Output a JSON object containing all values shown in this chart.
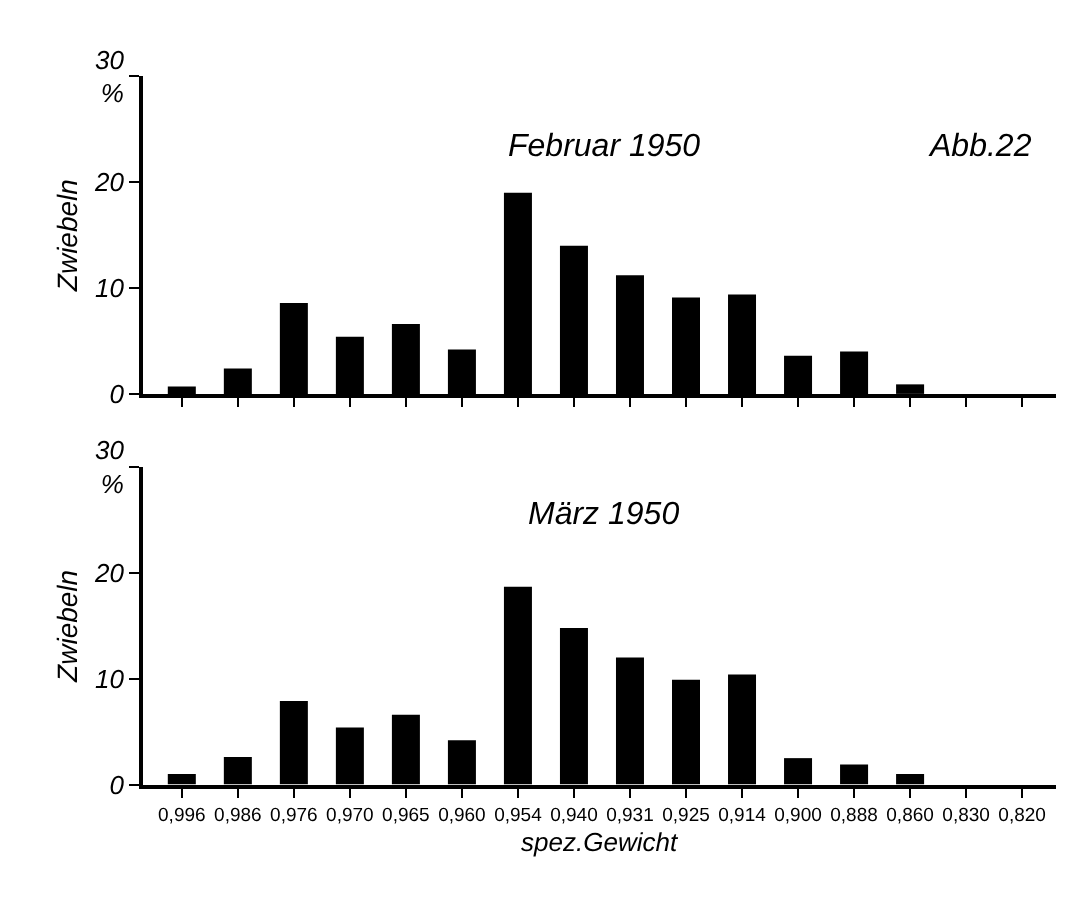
{
  "chart_data": [
    {
      "type": "bar",
      "title": "Februar 1950",
      "ylabel": "Zwiebeln",
      "annotations": [
        "Abb.22"
      ],
      "categories": [
        "0,996",
        "0,986",
        "0,976",
        "0,970",
        "0,965",
        "0,960",
        "0,954",
        "0,940",
        "0,931",
        "0,925",
        "0,914",
        "0,900",
        "0,888",
        "0,860",
        "0,830",
        "0,820"
      ],
      "values": [
        0.7,
        2.4,
        8.6,
        5.4,
        6.6,
        4.2,
        19.0,
        14.0,
        11.2,
        9.1,
        9.4,
        3.6,
        4.0,
        0.9,
        null,
        null
      ],
      "color": "#000000",
      "ylim": [
        0,
        30
      ],
      "yticks": [
        0,
        10,
        20,
        {
          "value": 30,
          "label": "30\n%"
        }
      ],
      "tick_labels": "y"
    },
    {
      "type": "bar",
      "title": "März 1950",
      "xlabel": "spez.Gewicht",
      "ylabel": "Zwiebeln",
      "categories": [
        "0,996",
        "0,986",
        "0,976",
        "0,970",
        "0,965",
        "0,960",
        "0,954",
        "0,940",
        "0,931",
        "0,925",
        "0,914",
        "0,900",
        "0,888",
        "0,860",
        "0,830",
        "0,820"
      ],
      "values": [
        1.0,
        2.6,
        7.9,
        5.4,
        6.6,
        4.2,
        18.7,
        14.8,
        12.0,
        9.9,
        10.4,
        2.5,
        1.9,
        1.0,
        null,
        null
      ],
      "color": "#000000",
      "ylim": [
        0,
        30
      ],
      "yticks": [
        0,
        10,
        20,
        {
          "value": 30,
          "label": "30\n%"
        }
      ]
    }
  ]
}
